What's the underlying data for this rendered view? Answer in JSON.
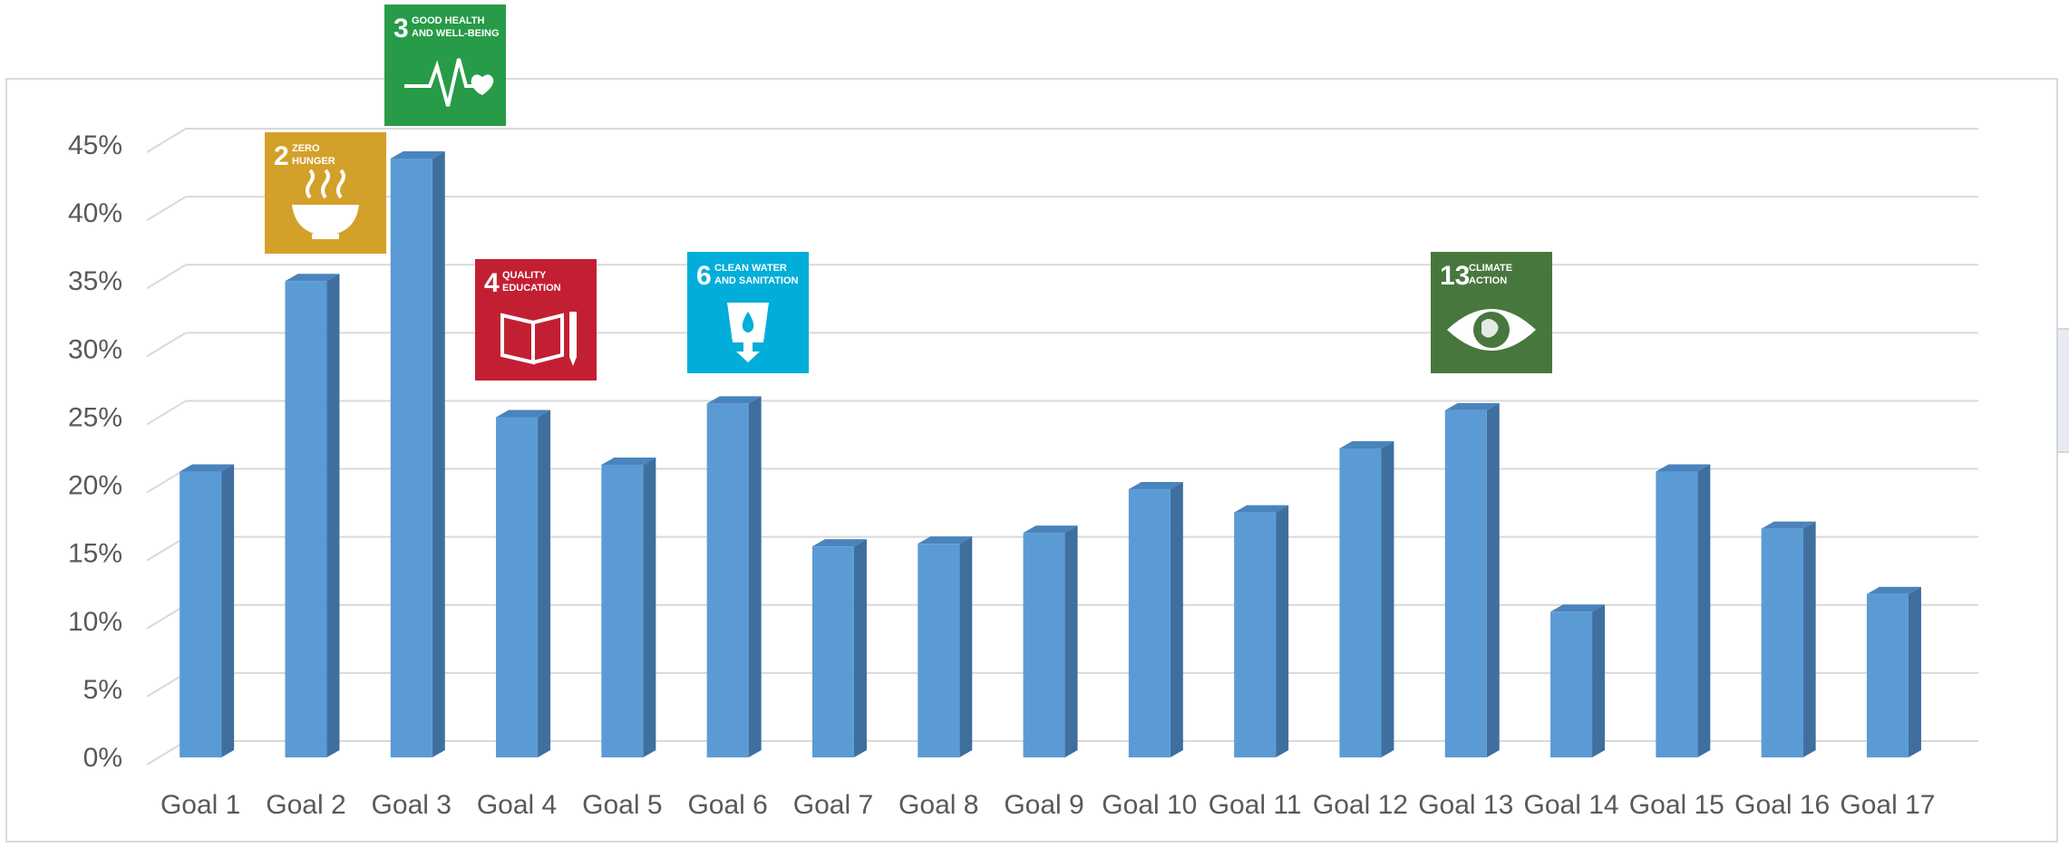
{
  "chart_data": {
    "type": "bar",
    "title": "",
    "xlabel": "",
    "ylabel": "",
    "ylim": [
      0,
      0.45
    ],
    "y_tick_step": 0.05,
    "y_ticks": [
      "0%",
      "5%",
      "10%",
      "15%",
      "20%",
      "25%",
      "30%",
      "35%",
      "40%",
      "45%"
    ],
    "grid": true,
    "bar_style": "3d",
    "colors": {
      "bar_front": "#5b9bd5",
      "bar_side": "#3f6f9f",
      "bar_top": "#4a84bd",
      "grid": "#d9d9d9",
      "text": "#595959"
    },
    "categories": [
      "Goal 1",
      "Goal 2",
      "Goal 3",
      "Goal 4",
      "Goal 5",
      "Goal 6",
      "Goal 7",
      "Goal 8",
      "Goal 9",
      "Goal 10",
      "Goal 11",
      "Goal 12",
      "Goal 13",
      "Goal 14",
      "Goal 15",
      "Goal 16",
      "Goal 17"
    ],
    "values": [
      0.21,
      0.35,
      0.44,
      0.25,
      0.215,
      0.26,
      0.155,
      0.157,
      0.165,
      0.197,
      0.18,
      0.227,
      0.255,
      0.107,
      0.21,
      0.168,
      0.12
    ]
  },
  "sdg_icons": [
    {
      "goal_index": 1,
      "number": "2",
      "line1": "ZERO",
      "line2": "HUNGER",
      "color": "#d3a029",
      "icon": "bowl-icon"
    },
    {
      "goal_index": 2,
      "number": "3",
      "line1": "GOOD HEALTH",
      "line2": "AND WELL-BEING",
      "color": "#279b48",
      "icon": "heartbeat-icon"
    },
    {
      "goal_index": 3,
      "number": "4",
      "line1": "QUALITY",
      "line2": "EDUCATION",
      "color": "#c31f33",
      "icon": "book-pencil-icon"
    },
    {
      "goal_index": 5,
      "number": "6",
      "line1": "CLEAN WATER",
      "line2": "AND SANITATION",
      "color": "#00aed9",
      "icon": "water-glass-icon"
    },
    {
      "goal_index": 12,
      "number": "13",
      "line1": "CLIMATE",
      "line2": "ACTION",
      "color": "#48773e",
      "icon": "globe-eye-icon"
    }
  ]
}
